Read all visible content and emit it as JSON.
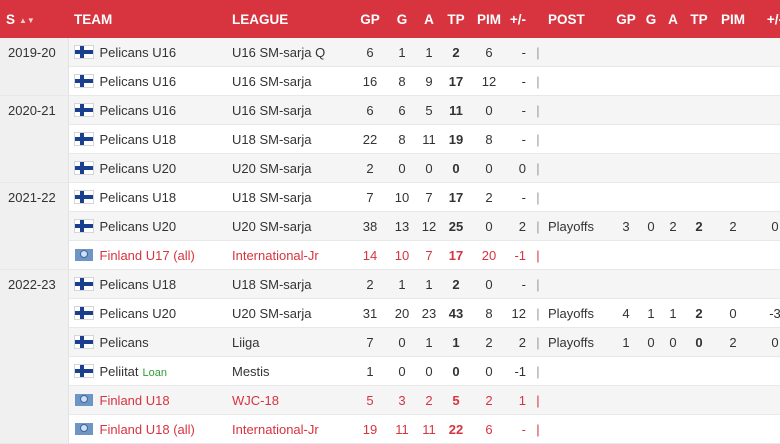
{
  "header": {
    "season": "S",
    "team": "TEAM",
    "league": "LEAGUE",
    "gp": "GP",
    "g": "G",
    "a": "A",
    "tp": "TP",
    "pim": "PIM",
    "pm": "+/-",
    "post": "POST",
    "post_gp": "GP",
    "post_g": "G",
    "post_a": "A",
    "post_tp": "TP",
    "post_pim": "PIM",
    "post_pm": "+/-",
    "sort_icon": "sort-arrows-icon"
  },
  "rows": [
    {
      "season": "2019-20",
      "team": "Pelicans U16",
      "league": "U16 SM-sarja Q",
      "gp": "6",
      "g": "1",
      "a": "1",
      "tp": "2",
      "pim": "6",
      "pm": "-",
      "sep": "|",
      "post": "",
      "pgp": "",
      "pg": "",
      "pa": "",
      "ptp": "",
      "ppim": "",
      "ppm": ""
    },
    {
      "season": "",
      "team": "Pelicans U16",
      "league": "U16 SM-sarja",
      "gp": "16",
      "g": "8",
      "a": "9",
      "tp": "17",
      "pim": "12",
      "pm": "-",
      "sep": "|",
      "post": "",
      "pgp": "",
      "pg": "",
      "pa": "",
      "ptp": "",
      "ppim": "",
      "ppm": ""
    },
    {
      "season": "2020-21",
      "team": "Pelicans U16",
      "league": "U16 SM-sarja",
      "gp": "6",
      "g": "6",
      "a": "5",
      "tp": "11",
      "pim": "0",
      "pm": "-",
      "sep": "|",
      "post": "",
      "pgp": "",
      "pg": "",
      "pa": "",
      "ptp": "",
      "ppim": "",
      "ppm": ""
    },
    {
      "season": "",
      "team": "Pelicans U18",
      "league": "U18 SM-sarja",
      "gp": "22",
      "g": "8",
      "a": "11",
      "tp": "19",
      "pim": "8",
      "pm": "-",
      "sep": "|",
      "post": "",
      "pgp": "",
      "pg": "",
      "pa": "",
      "ptp": "",
      "ppim": "",
      "ppm": ""
    },
    {
      "season": "",
      "team": "Pelicans U20",
      "league": "U20 SM-sarja",
      "gp": "2",
      "g": "0",
      "a": "0",
      "tp": "0",
      "pim": "0",
      "pm": "0",
      "sep": "|",
      "post": "",
      "pgp": "",
      "pg": "",
      "pa": "",
      "ptp": "",
      "ppim": "",
      "ppm": ""
    },
    {
      "season": "2021-22",
      "team": "Pelicans U18",
      "league": "U18 SM-sarja",
      "gp": "7",
      "g": "10",
      "a": "7",
      "tp": "17",
      "pim": "2",
      "pm": "-",
      "sep": "|",
      "post": "",
      "pgp": "",
      "pg": "",
      "pa": "",
      "ptp": "",
      "ppim": "",
      "ppm": ""
    },
    {
      "season": "",
      "team": "Pelicans U20",
      "league": "U20 SM-sarja",
      "gp": "38",
      "g": "13",
      "a": "12",
      "tp": "25",
      "pim": "0",
      "pm": "2",
      "sep": "|",
      "post": "Playoffs",
      "pgp": "3",
      "pg": "0",
      "pa": "2",
      "ptp": "2",
      "ppim": "2",
      "ppm": "0"
    },
    {
      "season": "",
      "team": "Finland U17 (all)",
      "league": "International-Jr",
      "gp": "14",
      "g": "10",
      "a": "7",
      "tp": "17",
      "pim": "20",
      "pm": "-1",
      "sep": "|",
      "post": "",
      "pgp": "",
      "pg": "",
      "pa": "",
      "ptp": "",
      "ppim": "",
      "ppm": ""
    },
    {
      "season": "2022-23",
      "team": "Pelicans U18",
      "league": "U18 SM-sarja",
      "gp": "2",
      "g": "1",
      "a": "1",
      "tp": "2",
      "pim": "0",
      "pm": "-",
      "sep": "|",
      "post": "",
      "pgp": "",
      "pg": "",
      "pa": "",
      "ptp": "",
      "ppim": "",
      "ppm": ""
    },
    {
      "season": "",
      "team": "Pelicans U20",
      "league": "U20 SM-sarja",
      "gp": "31",
      "g": "20",
      "a": "23",
      "tp": "43",
      "pim": "8",
      "pm": "12",
      "sep": "|",
      "post": "Playoffs",
      "pgp": "4",
      "pg": "1",
      "pa": "1",
      "ptp": "2",
      "ppim": "0",
      "ppm": "-3"
    },
    {
      "season": "",
      "team": "Pelicans",
      "league": "Liiga",
      "gp": "7",
      "g": "0",
      "a": "1",
      "tp": "1",
      "pim": "2",
      "pm": "2",
      "sep": "|",
      "post": "Playoffs",
      "pgp": "1",
      "pg": "0",
      "pa": "0",
      "ptp": "0",
      "ppim": "2",
      "ppm": "0"
    },
    {
      "season": "",
      "team": "Peliitat",
      "loan": "Loan",
      "league": "Mestis",
      "gp": "1",
      "g": "0",
      "a": "0",
      "tp": "0",
      "pim": "0",
      "pm": "-1",
      "sep": "|",
      "post": "",
      "pgp": "",
      "pg": "",
      "pa": "",
      "ptp": "",
      "ppim": "",
      "ppm": ""
    },
    {
      "season": "",
      "team": "Finland U18",
      "league": "WJC-18",
      "gp": "5",
      "g": "3",
      "a": "2",
      "tp": "5",
      "pim": "2",
      "pm": "1",
      "sep": "|",
      "post": "",
      "pgp": "",
      "pg": "",
      "pa": "",
      "ptp": "",
      "ppim": "",
      "ppm": ""
    },
    {
      "season": "",
      "team": "Finland U18 (all)",
      "league": "International-Jr",
      "gp": "19",
      "g": "11",
      "a": "11",
      "tp": "22",
      "pim": "6",
      "pm": "-",
      "sep": "|",
      "post": "",
      "pgp": "",
      "pg": "",
      "pa": "",
      "ptp": "",
      "ppim": "",
      "ppm": ""
    }
  ],
  "icons": {
    "finland_flag": "finland-flag-icon",
    "international": "globe-icon"
  },
  "colors": {
    "header_bg": "#d7343f",
    "international_text": "#d7343f",
    "loan_badge": "#2f9d3a"
  }
}
